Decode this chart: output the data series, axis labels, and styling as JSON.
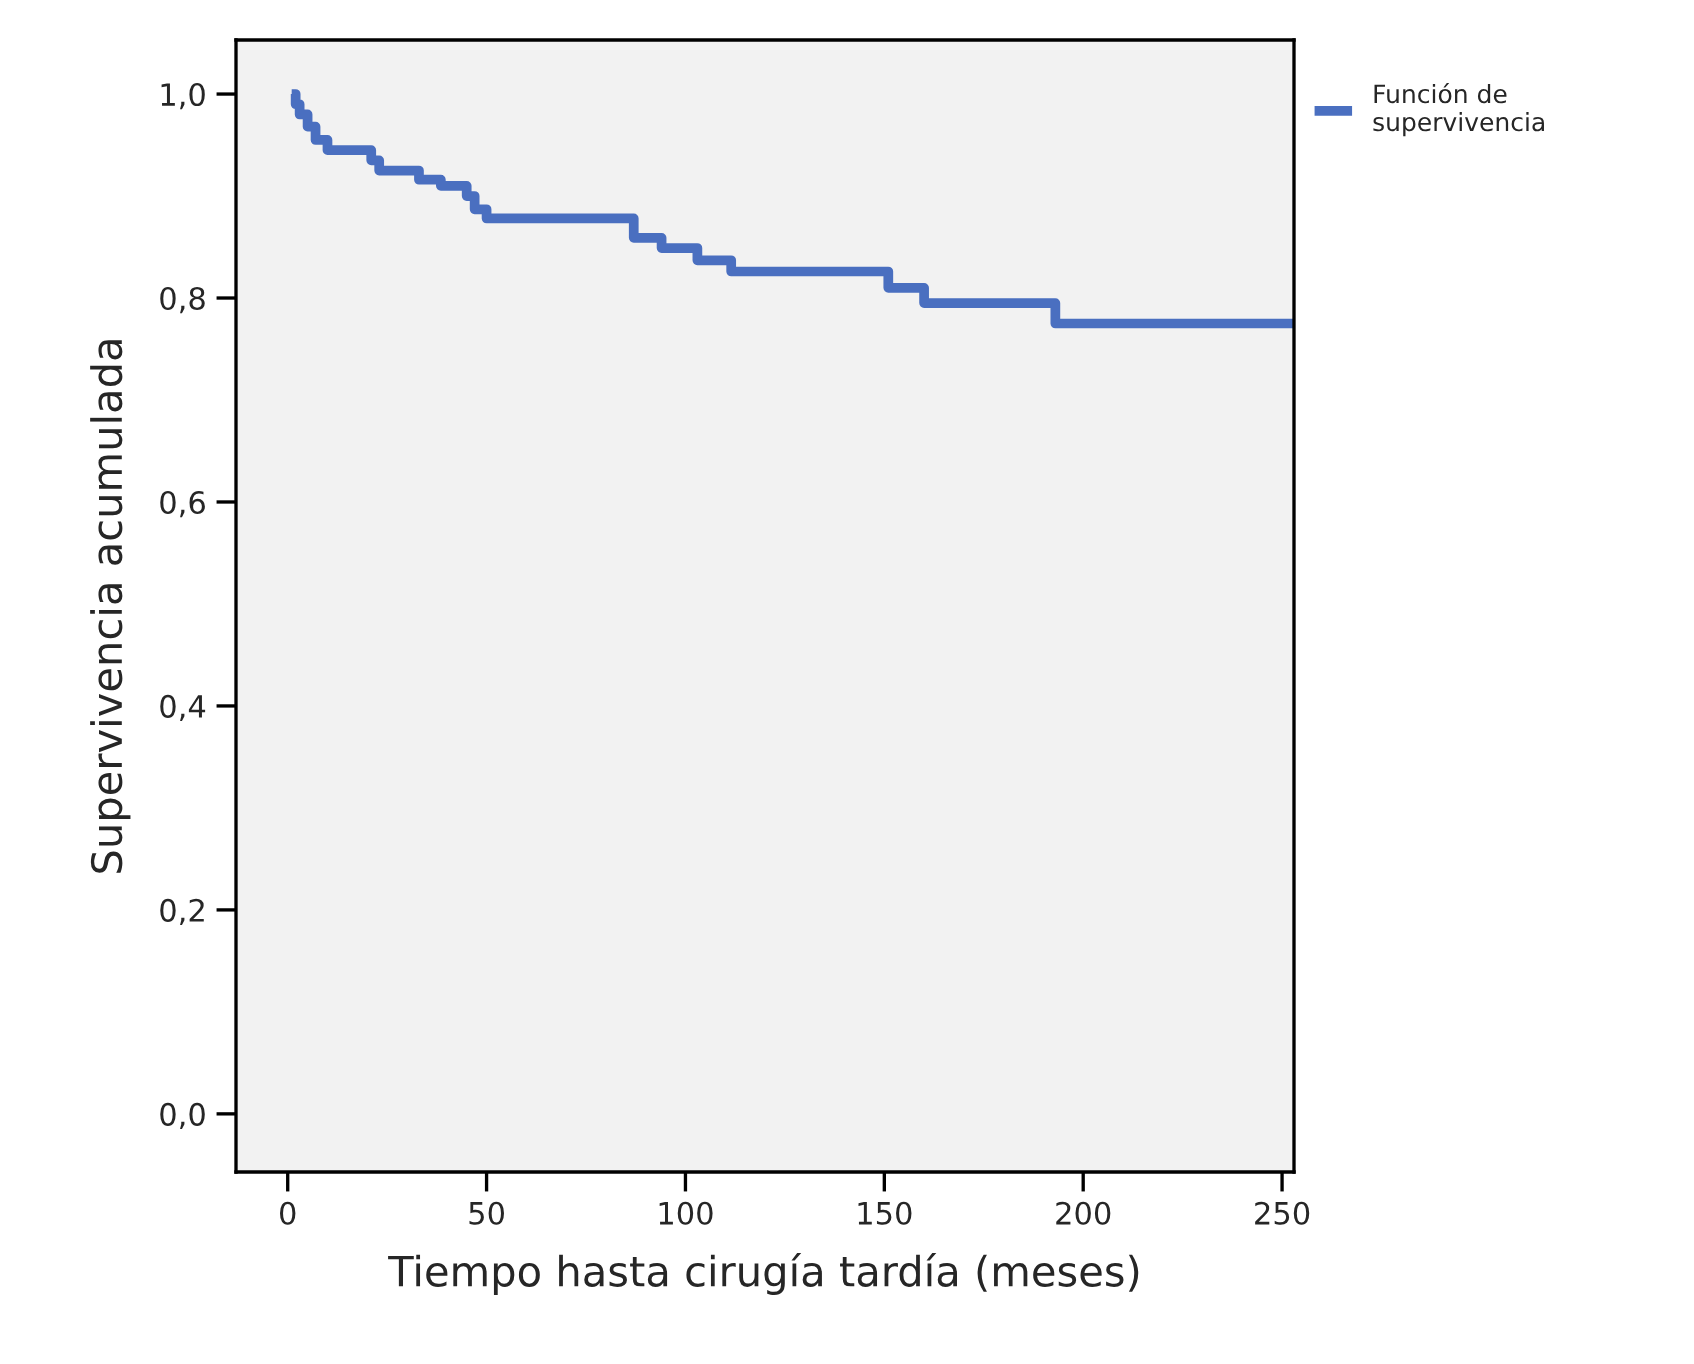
{
  "chart_data": {
    "type": "step",
    "xlabel": "Tiempo hasta cirugía tardía (meses)",
    "ylabel": "Supervivencia acumulada",
    "series": [
      {
        "name": "Función de\nsupervivencia",
        "color": "#4a6fc0",
        "x": [
          1,
          2,
          3,
          5,
          7,
          10,
          21,
          23,
          33,
          38.5,
          45,
          47,
          50,
          87,
          94,
          103,
          111.5,
          151,
          160,
          193,
          253
        ],
        "values": [
          1.0,
          0.99,
          0.98,
          0.968,
          0.955,
          0.945,
          0.935,
          0.925,
          0.916,
          0.91,
          0.9,
          0.887,
          0.878,
          0.859,
          0.849,
          0.837,
          0.826,
          0.81,
          0.795,
          0.775,
          0.775
        ]
      }
    ],
    "xlim": [
      -13,
      253
    ],
    "ylim": [
      -0.057,
      1.053
    ],
    "xticks": [
      0,
      50,
      100,
      150,
      200,
      250
    ],
    "yticks": [
      {
        "value": 0,
        "label": "0,0"
      },
      {
        "value": 0.2,
        "label": "0,2"
      },
      {
        "value": 0.4,
        "label": "0,4"
      },
      {
        "value": 0.6,
        "label": "0,6"
      },
      {
        "value": 0.8,
        "label": "0,8"
      },
      {
        "value": 1.0,
        "label": "1,0"
      }
    ],
    "grid": false,
    "legend": "top right"
  }
}
